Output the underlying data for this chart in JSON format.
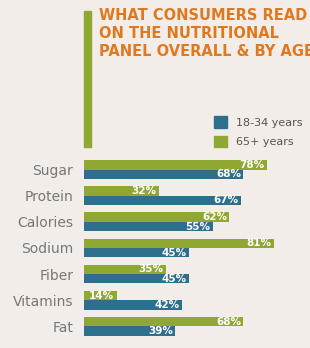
{
  "title_line1": "WHAT CONSUMERS READ",
  "title_line2": "ON THE NUTRITIONAL",
  "title_line3": "PANEL OVERALL & BY AGE",
  "title_color": "#E07820",
  "categories": [
    "Sugar",
    "Protein",
    "Calories",
    "Sodium",
    "Fiber",
    "Vitamins",
    "Fat"
  ],
  "young_values": [
    68,
    67,
    55,
    45,
    45,
    42,
    39
  ],
  "old_values": [
    78,
    32,
    62,
    81,
    35,
    14,
    68
  ],
  "young_color": "#2E6F8E",
  "old_color": "#8FA832",
  "background_color": "#F2EDE8",
  "legend_young": "18-34 years",
  "legend_old": "65+ years",
  "bar_height": 0.36,
  "xlim": [
    0,
    95
  ],
  "accent_line_color": "#8FA832",
  "label_fontsize": 7.5,
  "cat_fontsize": 10,
  "title_fontsize": 10.5
}
